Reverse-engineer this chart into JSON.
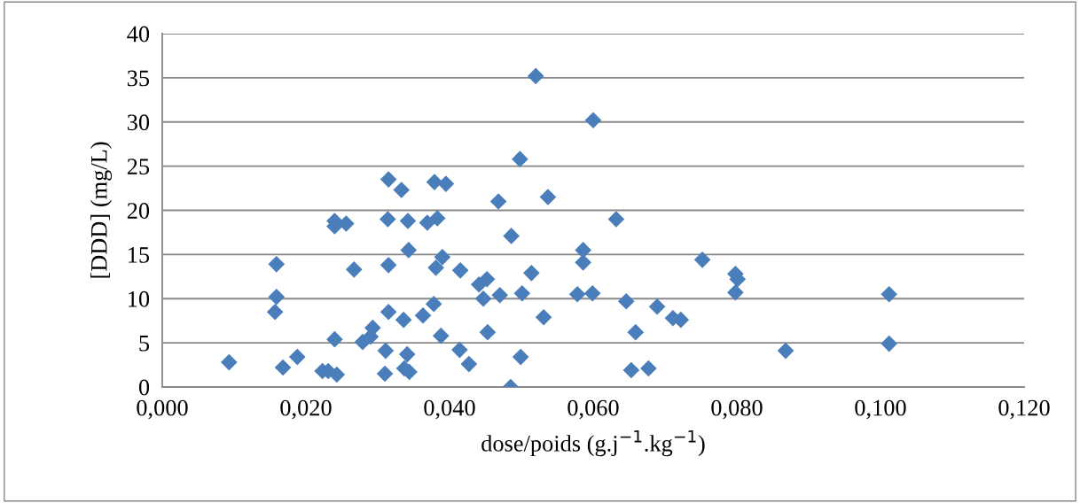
{
  "chart_data": {
    "type": "scatter",
    "xlabel": "dose/poids (g.j$^{−1}$.kg$^{−1}$)",
    "ylabel": "[DDD] (mg/L)",
    "xlim": [
      0,
      0.12
    ],
    "ylim": [
      0,
      40
    ],
    "xticks": [
      {
        "value": 0,
        "label": "0,000"
      },
      {
        "value": 0.02,
        "label": "0,020"
      },
      {
        "value": 0.04,
        "label": "0,040"
      },
      {
        "value": 0.06,
        "label": "0,060"
      },
      {
        "value": 0.08,
        "label": "0,080"
      },
      {
        "value": 0.1,
        "label": "0,100"
      },
      {
        "value": 0.12,
        "label": "0,120"
      }
    ],
    "yticks": [
      0,
      5,
      10,
      15,
      20,
      25,
      30,
      35,
      40
    ],
    "grid": "y",
    "marker": "diamond",
    "series": [
      {
        "color": "#4a7ebb",
        "x": [
          0.0093,
          0.0159,
          0.0159,
          0.0157,
          0.0168,
          0.0188,
          0.0223,
          0.0231,
          0.0243,
          0.024,
          0.024,
          0.024,
          0.0256,
          0.0267,
          0.0279,
          0.029,
          0.0293,
          0.031,
          0.0311,
          0.0315,
          0.0315,
          0.0315,
          0.0314,
          0.0333,
          0.0336,
          0.0337,
          0.0341,
          0.0342,
          0.0343,
          0.0344,
          0.0363,
          0.0369,
          0.0378,
          0.0379,
          0.0381,
          0.0383,
          0.0388,
          0.039,
          0.0395,
          0.0414,
          0.0415,
          0.0427,
          0.0441,
          0.0447,
          0.0452,
          0.0453,
          0.0468,
          0.047,
          0.0485,
          0.0486,
          0.0498,
          0.0499,
          0.0501,
          0.0514,
          0.052,
          0.0531,
          0.0537,
          0.0578,
          0.0586,
          0.0586,
          0.0599,
          0.06,
          0.0632,
          0.0646,
          0.0653,
          0.0659,
          0.0677,
          0.0689,
          0.0711,
          0.0722,
          0.0752,
          0.0798,
          0.0801,
          0.0798,
          0.0868,
          0.1012,
          0.1012
        ],
        "values": [
          2.8,
          13.9,
          10.2,
          8.5,
          2.2,
          3.4,
          1.8,
          1.8,
          1.4,
          5.4,
          18.8,
          18.2,
          18.5,
          13.3,
          5.1,
          5.7,
          6.7,
          1.5,
          4.1,
          8.5,
          13.8,
          23.5,
          19.0,
          22.3,
          7.6,
          2.1,
          3.7,
          18.8,
          15.5,
          1.7,
          8.1,
          18.6,
          9.4,
          23.2,
          13.5,
          19.1,
          5.8,
          14.7,
          23.0,
          4.2,
          13.2,
          2.6,
          11.6,
          10.0,
          12.2,
          6.2,
          21.0,
          10.4,
          0.0,
          17.1,
          25.8,
          3.4,
          10.6,
          12.9,
          35.2,
          7.9,
          21.5,
          10.5,
          15.5,
          14.1,
          10.6,
          30.2,
          19.0,
          9.7,
          1.9,
          6.2,
          2.1,
          9.1,
          7.8,
          7.6,
          14.4,
          12.8,
          12.2,
          10.7,
          4.1,
          10.5,
          4.9
        ]
      }
    ]
  }
}
